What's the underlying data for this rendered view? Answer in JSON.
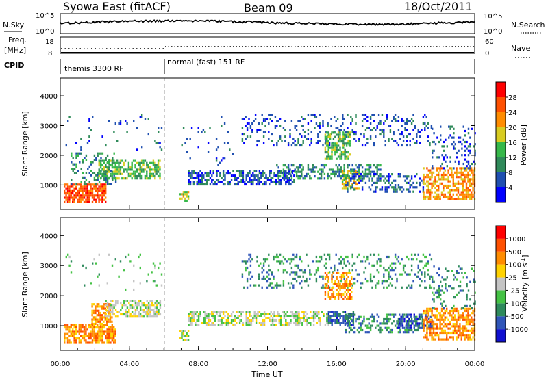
{
  "header": {
    "title": "Syowa East (fitACF)",
    "beam": "Beam 09",
    "date": "18/Oct/2011"
  },
  "status_panel": {
    "nsky_label": "N.Sky",
    "nsearch_label": "N.Search",
    "noise_ticks": [
      "10^5",
      "10^0"
    ],
    "freq_label_1": "Freq.",
    "freq_label_2": "[MHz]",
    "freq_ticks": [
      "18",
      "8"
    ],
    "nave_label": "Nave",
    "nave_ticks": [
      "60",
      "0"
    ],
    "cpid_label": "CPID",
    "cpid_segments": [
      {
        "name": "themis 3300 RF",
        "start_hour": 0,
        "end_hour": 6.0
      },
      {
        "name": "normal (fast) 151 RF",
        "start_hour": 6.0,
        "end_hour": 24
      }
    ]
  },
  "colors": {
    "power_scale": [
      "#0000ff",
      "#1f4fb0",
      "#2f8a5a",
      "#36b84a",
      "#d8cc20",
      "#ff8c00",
      "#ff5000",
      "#ff0000"
    ],
    "velocity_scale": [
      "#1010d0",
      "#2f55b8",
      "#2e8a5c",
      "#44c244",
      "#c4c4c4",
      "#ffd200",
      "#ff8c00",
      "#ff5000",
      "#ff0000"
    ]
  },
  "chart_data": [
    {
      "type": "heatmap",
      "panel": "power",
      "xlabel": "Time UT",
      "ylabel": "Slant Range [km]",
      "xlim": [
        0,
        24
      ],
      "ylim": [
        180,
        4600
      ],
      "x_ticks": [
        "00:00",
        "04:00",
        "08:00",
        "12:00",
        "16:00",
        "20:00",
        "00:00"
      ],
      "y_ticks": [
        1000,
        2000,
        3000,
        4000
      ],
      "colorbar_label": "Power [dB]",
      "colorbar_ticks": [
        "4",
        "8",
        "12",
        "16",
        "20",
        "24",
        "28"
      ],
      "regions": [
        {
          "t0": 0.2,
          "t1": 2.6,
          "r0": 400,
          "r1": 1050,
          "level": 6,
          "density": 0.75
        },
        {
          "t0": 0.6,
          "t1": 3.2,
          "r0": 1050,
          "r1": 2100,
          "level": 2,
          "density": 0.3
        },
        {
          "t0": 2.2,
          "t1": 5.8,
          "r0": 1250,
          "r1": 1850,
          "level": 3,
          "density": 0.6
        },
        {
          "t0": 0.3,
          "t1": 5.9,
          "r0": 2200,
          "r1": 3400,
          "level": 1,
          "density": 0.05
        },
        {
          "t0": 6.9,
          "t1": 7.4,
          "r0": 500,
          "r1": 800,
          "level": 4,
          "density": 0.7
        },
        {
          "t0": 7.4,
          "t1": 13.5,
          "r0": 1050,
          "r1": 1500,
          "level": 1,
          "density": 0.55
        },
        {
          "t0": 7.0,
          "t1": 10.0,
          "r0": 1700,
          "r1": 3400,
          "level": 1,
          "density": 0.05
        },
        {
          "t0": 10.5,
          "t1": 21.5,
          "r0": 2300,
          "r1": 3400,
          "level": 1,
          "density": 0.2
        },
        {
          "t0": 12.5,
          "t1": 18.5,
          "r0": 1200,
          "r1": 1700,
          "level": 2,
          "density": 0.45
        },
        {
          "t0": 15.3,
          "t1": 16.8,
          "r0": 1900,
          "r1": 2800,
          "level": 3,
          "density": 0.6
        },
        {
          "t0": 16.3,
          "t1": 17.3,
          "r0": 900,
          "r1": 1500,
          "level": 4,
          "density": 0.6
        },
        {
          "t0": 16.5,
          "t1": 21.0,
          "r0": 800,
          "r1": 1400,
          "level": 1,
          "density": 0.35
        },
        {
          "t0": 21.0,
          "t1": 24.0,
          "r0": 550,
          "r1": 1600,
          "level": 5,
          "density": 0.6
        },
        {
          "t0": 21.5,
          "t1": 24.0,
          "r0": 1600,
          "r1": 3000,
          "level": 1,
          "density": 0.2
        }
      ]
    },
    {
      "type": "heatmap",
      "panel": "velocity",
      "xlabel": "Time UT",
      "ylabel": "Slant Range [km]",
      "xlim": [
        0,
        24
      ],
      "ylim": [
        180,
        4600
      ],
      "x_ticks": [
        "00:00",
        "04:00",
        "08:00",
        "12:00",
        "16:00",
        "20:00",
        "00:00"
      ],
      "y_ticks": [
        1000,
        2000,
        3000,
        4000
      ],
      "colorbar_label": "Velocity [m s^-1]",
      "colorbar_ticks": [
        "1000",
        "500",
        "100",
        "25",
        "-25",
        "-100",
        "-500",
        "-1000"
      ],
      "regions": [
        {
          "t0": 0.2,
          "t1": 3.2,
          "r0": 400,
          "r1": 1050,
          "level": 6,
          "density": 0.75
        },
        {
          "t0": 1.8,
          "t1": 3.0,
          "r0": 1050,
          "r1": 1750,
          "level": 6,
          "density": 0.7
        },
        {
          "t0": 2.6,
          "t1": 5.8,
          "r0": 1300,
          "r1": 1850,
          "level": 4,
          "density": 0.6
        },
        {
          "t0": 0.3,
          "t1": 5.9,
          "r0": 2200,
          "r1": 3400,
          "level": 3,
          "density": 0.05
        },
        {
          "t0": 6.9,
          "t1": 7.4,
          "r0": 550,
          "r1": 850,
          "level": 4,
          "density": 0.7
        },
        {
          "t0": 7.4,
          "t1": 15.5,
          "r0": 1050,
          "r1": 1500,
          "level": 4,
          "density": 0.6
        },
        {
          "t0": 10.5,
          "t1": 21.5,
          "r0": 2300,
          "r1": 3400,
          "level": 2,
          "density": 0.2
        },
        {
          "t0": 15.3,
          "t1": 16.9,
          "r0": 1900,
          "r1": 2800,
          "level": 6,
          "density": 0.5
        },
        {
          "t0": 15.5,
          "t1": 17.0,
          "r0": 1000,
          "r1": 1500,
          "level": 1,
          "density": 0.6
        },
        {
          "t0": 16.5,
          "t1": 21.0,
          "r0": 800,
          "r1": 1400,
          "level": 2,
          "density": 0.35
        },
        {
          "t0": 19.5,
          "t1": 21.5,
          "r0": 900,
          "r1": 1400,
          "level": 1,
          "density": 0.5
        },
        {
          "t0": 21.0,
          "t1": 24.0,
          "r0": 550,
          "r1": 1600,
          "level": 6,
          "density": 0.6
        },
        {
          "t0": 21.5,
          "t1": 24.0,
          "r0": 1600,
          "r1": 3000,
          "level": 2,
          "density": 0.2
        }
      ]
    }
  ]
}
